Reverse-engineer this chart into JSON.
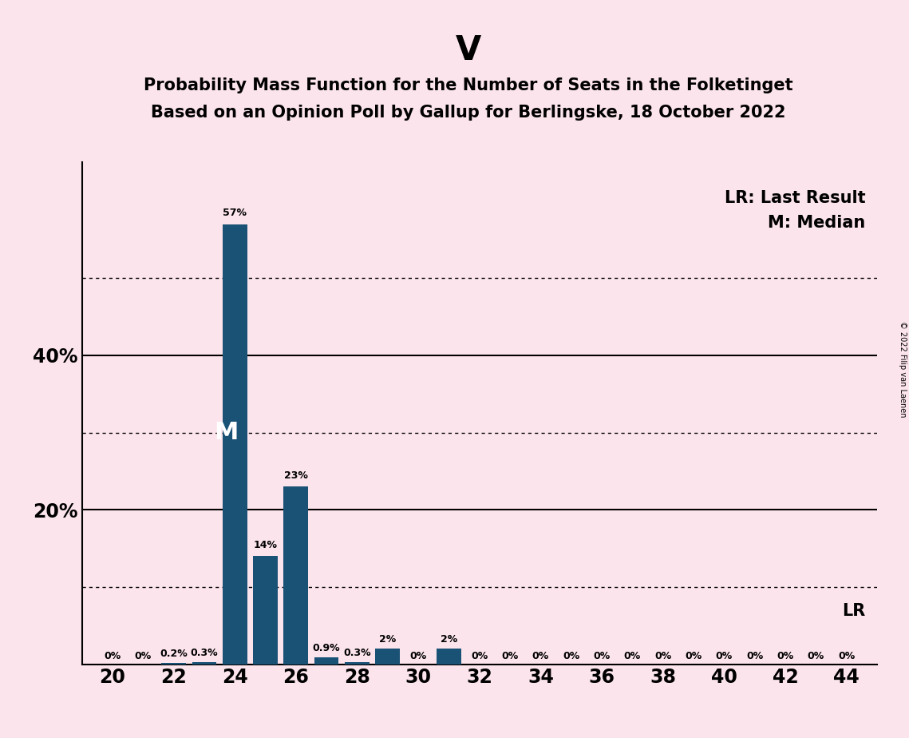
{
  "title": "V",
  "subtitle_line1": "Probability Mass Function for the Number of Seats in the Folketinget",
  "subtitle_line2": "Based on an Opinion Poll by Gallup for Berlingske, 18 October 2022",
  "background_color": "#fce4ec",
  "bar_color": "#1a5276",
  "seats": [
    20,
    21,
    22,
    23,
    24,
    25,
    26,
    27,
    28,
    29,
    30,
    31,
    32,
    33,
    34,
    35,
    36,
    37,
    38,
    39,
    40,
    41,
    42,
    43,
    44
  ],
  "values": [
    0,
    0,
    0.2,
    0.3,
    57,
    14,
    23,
    0.9,
    0.3,
    2,
    0,
    2,
    0,
    0,
    0,
    0,
    0,
    0,
    0,
    0,
    0,
    0,
    0,
    0,
    0
  ],
  "labels": [
    "0%",
    "0%",
    "0.2%",
    "0.3%",
    "57%",
    "14%",
    "23%",
    "0.9%",
    "0.3%",
    "2%",
    "0%",
    "2%",
    "0%",
    "0%",
    "0%",
    "0%",
    "0%",
    "0%",
    "0%",
    "0%",
    "0%",
    "0%",
    "0%",
    "0%",
    "0%"
  ],
  "median_seat": 24,
  "median_label": "M",
  "legend_lr": "LR: Last Result",
  "legend_m": "M: Median",
  "lr_label": "LR",
  "copyright": "© 2022 Filip van Laenen",
  "ylim": [
    0,
    65
  ],
  "major_yticks": [
    20,
    40
  ],
  "dotted_yticks": [
    10,
    30,
    50
  ],
  "bar_width": 0.8,
  "xlim": [
    19,
    45
  ],
  "xticks": [
    20,
    22,
    24,
    26,
    28,
    30,
    32,
    34,
    36,
    38,
    40,
    42,
    44
  ],
  "title_fontsize": 30,
  "subtitle_fontsize": 15,
  "tick_fontsize": 17,
  "label_fontsize": 9,
  "legend_fontsize": 15,
  "median_fontsize": 22
}
